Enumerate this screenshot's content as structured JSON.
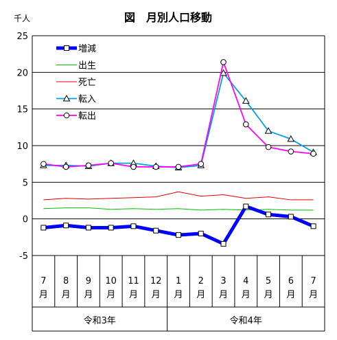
{
  "chart_data": {
    "type": "line",
    "title": "図　月別人口移動",
    "unit_label": "千人",
    "ylim": [
      -5,
      25
    ],
    "yticks": [
      -5,
      0,
      5,
      10,
      15,
      20,
      25
    ],
    "grid": "horizontal",
    "legend_position": "top-left",
    "x_month_number_labels": [
      "7",
      "8",
      "9",
      "10",
      "11",
      "12",
      "1",
      "2",
      "3",
      "4",
      "5",
      "6",
      "7"
    ],
    "x_month_suffix": "月",
    "year_groups": [
      {
        "label": "令和3年",
        "count": 6
      },
      {
        "label": "令和4年",
        "count": 7
      }
    ],
    "series": [
      {
        "name": "増減",
        "color": "#0000FF",
        "marker": "square",
        "values": [
          -1.2,
          -0.9,
          -1.2,
          -1.2,
          -1.0,
          -1.6,
          -2.2,
          -2.0,
          -3.4,
          1.7,
          0.6,
          0.3,
          -1.0
        ]
      },
      {
        "name": "出生",
        "color": "#00C000",
        "marker": "none",
        "values": [
          1.4,
          1.5,
          1.5,
          1.3,
          1.4,
          1.3,
          1.4,
          1.2,
          1.3,
          1.2,
          1.3,
          1.2,
          1.2
        ]
      },
      {
        "name": "死亡",
        "color": "#E00000",
        "marker": "none",
        "values": [
          2.6,
          2.8,
          2.7,
          2.8,
          2.9,
          3.0,
          3.7,
          3.1,
          3.3,
          2.8,
          3.0,
          2.6,
          2.6
        ]
      },
      {
        "name": "転入",
        "color": "#00A0E0",
        "marker": "triangle",
        "values": [
          7.3,
          7.3,
          7.2,
          7.6,
          7.6,
          7.2,
          7.0,
          7.3,
          19.9,
          16.1,
          12.0,
          10.9,
          9.1
        ]
      },
      {
        "name": "転出",
        "color": "#FF00FF",
        "marker": "circle",
        "values": [
          7.5,
          7.1,
          7.3,
          7.6,
          7.1,
          7.1,
          7.1,
          7.5,
          21.4,
          12.9,
          9.8,
          9.2,
          8.9
        ]
      }
    ]
  }
}
